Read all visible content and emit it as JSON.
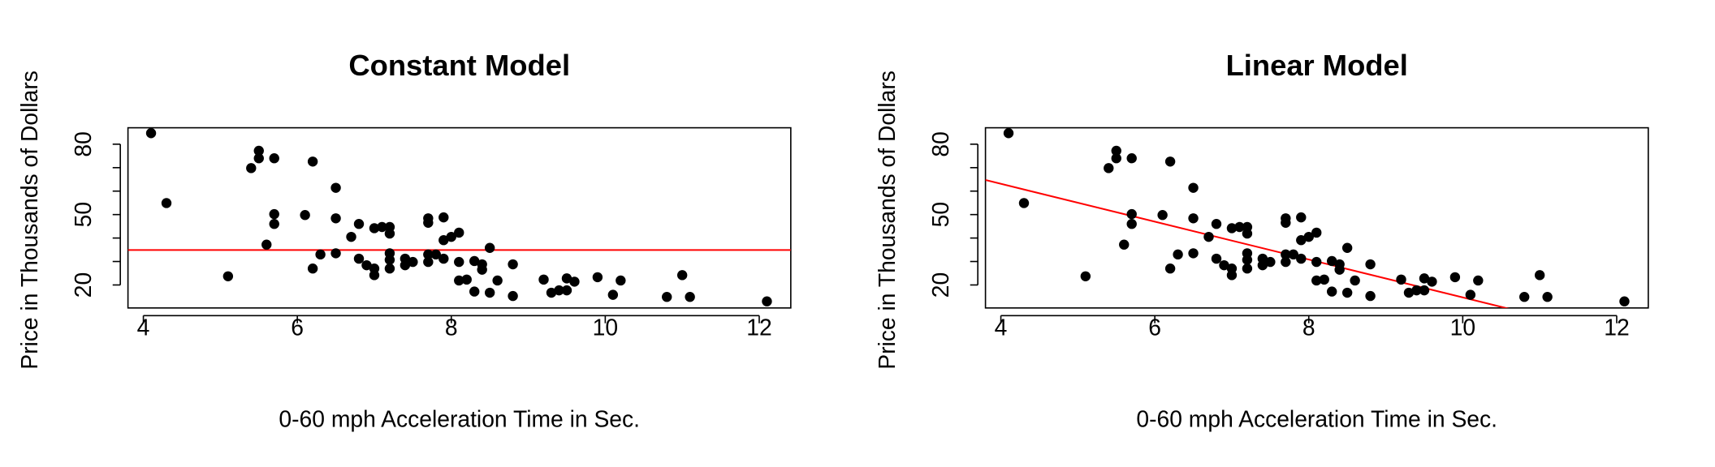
{
  "chart_data": [
    {
      "type": "scatter",
      "title": "Constant Model",
      "xlabel": "0-60 mph Acceleration Time in Sec.",
      "ylabel": "Price in Thousands of Dollars",
      "x": [
        4.1,
        4.3,
        5.1,
        5.4,
        5.5,
        5.5,
        5.6,
        5.7,
        5.7,
        5.7,
        6.1,
        6.2,
        6.2,
        6.3,
        6.5,
        6.5,
        6.5,
        6.7,
        6.8,
        6.8,
        6.9,
        7.0,
        7.0,
        7.0,
        7.1,
        7.2,
        7.2,
        7.2,
        7.2,
        7.2,
        7.4,
        7.4,
        7.5,
        7.7,
        7.7,
        7.7,
        7.7,
        7.8,
        7.9,
        7.9,
        7.9,
        8.0,
        8.1,
        8.1,
        8.1,
        8.2,
        8.3,
        8.3,
        8.4,
        8.4,
        8.5,
        8.5,
        8.6,
        8.8,
        8.8,
        9.2,
        9.3,
        9.4,
        9.5,
        9.5,
        9.6,
        9.9,
        10.1,
        10.2,
        10.8,
        11.0,
        11.1,
        12.1
      ],
      "values": [
        84.7,
        54.9,
        23.7,
        69.8,
        77.2,
        74.0,
        37.2,
        74.0,
        50.2,
        46.0,
        49.8,
        72.6,
        27.0,
        33.0,
        61.4,
        48.4,
        33.5,
        40.5,
        46.0,
        31.2,
        28.4,
        27.0,
        44.2,
        24.2,
        44.7,
        44.7,
        41.9,
        33.5,
        30.7,
        27.0,
        31.2,
        28.4,
        29.8,
        46.5,
        48.4,
        33.0,
        29.8,
        33.0,
        48.8,
        39.1,
        31.2,
        40.5,
        42.3,
        29.8,
        21.9,
        22.3,
        30.2,
        17.2,
        28.8,
        26.5,
        35.8,
        16.7,
        21.9,
        28.8,
        15.3,
        22.3,
        16.7,
        17.7,
        22.8,
        17.7,
        21.4,
        23.3,
        15.8,
        21.9,
        14.9,
        24.2,
        14.9,
        13.0
      ],
      "color": "#000000",
      "fit_line": {
        "intercept": 34.9,
        "slope": 0,
        "color": "#ff0000"
      },
      "xlim": [
        3.8,
        12.41
      ],
      "ylim": [
        10.2,
        87.0
      ],
      "xticks": [
        4,
        6,
        8,
        10,
        12
      ],
      "yticks": [
        20,
        50,
        80
      ],
      "yminorticks": [
        30,
        40,
        60,
        70
      ]
    },
    {
      "type": "scatter",
      "title": "Linear Model",
      "xlabel": "0-60 mph Acceleration Time in Sec.",
      "ylabel": "Price in Thousands of Dollars",
      "x": [
        4.1,
        4.3,
        5.1,
        5.4,
        5.5,
        5.5,
        5.6,
        5.7,
        5.7,
        5.7,
        6.1,
        6.2,
        6.2,
        6.3,
        6.5,
        6.5,
        6.5,
        6.7,
        6.8,
        6.8,
        6.9,
        7.0,
        7.0,
        7.0,
        7.1,
        7.2,
        7.2,
        7.2,
        7.2,
        7.2,
        7.4,
        7.4,
        7.5,
        7.7,
        7.7,
        7.7,
        7.7,
        7.8,
        7.9,
        7.9,
        7.9,
        8.0,
        8.1,
        8.1,
        8.1,
        8.2,
        8.3,
        8.3,
        8.4,
        8.4,
        8.5,
        8.5,
        8.6,
        8.8,
        8.8,
        9.2,
        9.3,
        9.4,
        9.5,
        9.5,
        9.6,
        9.9,
        10.1,
        10.2,
        10.8,
        11.0,
        11.1,
        12.1
      ],
      "values": [
        84.7,
        54.9,
        23.7,
        69.8,
        77.2,
        74.0,
        37.2,
        74.0,
        50.2,
        46.0,
        49.8,
        72.6,
        27.0,
        33.0,
        61.4,
        48.4,
        33.5,
        40.5,
        46.0,
        31.2,
        28.4,
        27.0,
        44.2,
        24.2,
        44.7,
        44.7,
        41.9,
        33.5,
        30.7,
        27.0,
        31.2,
        28.4,
        29.8,
        46.5,
        48.4,
        33.0,
        29.8,
        33.0,
        48.8,
        39.1,
        31.2,
        40.5,
        42.3,
        29.8,
        21.9,
        22.3,
        30.2,
        17.2,
        28.8,
        26.5,
        35.8,
        16.7,
        21.9,
        28.8,
        15.3,
        22.3,
        16.7,
        17.7,
        22.8,
        17.7,
        21.4,
        23.3,
        15.8,
        21.9,
        14.9,
        24.2,
        14.9,
        13.0
      ],
      "color": "#000000",
      "fit_line": {
        "intercept": 95.4,
        "slope": -8.07,
        "color": "#ff0000"
      },
      "xlim": [
        3.8,
        12.41
      ],
      "ylim": [
        10.2,
        87.0
      ],
      "xticks": [
        4,
        6,
        8,
        10,
        12
      ],
      "yticks": [
        20,
        50,
        80
      ],
      "yminorticks": [
        30,
        40,
        60,
        70
      ]
    }
  ]
}
